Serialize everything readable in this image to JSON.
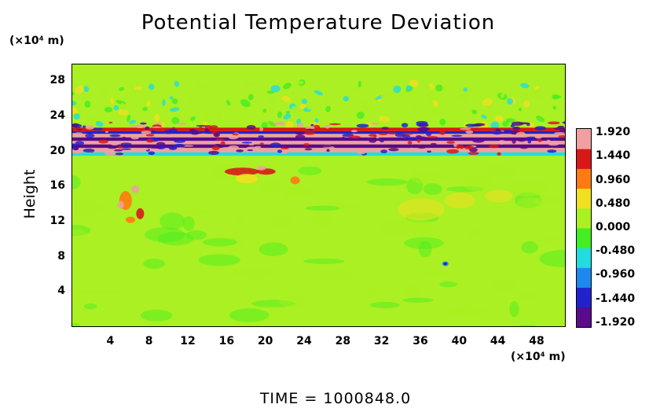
{
  "chart_data": {
    "type": "heatmap",
    "title": "Potential Temperature Deviation",
    "xlabel": "",
    "x_unit": "(×10⁴ m)",
    "ylabel": "Height",
    "y_unit": "(×10⁴ m)",
    "footer": "TIME  =  1000848.0",
    "xlim": [
      0,
      51
    ],
    "ylim": [
      0,
      30
    ],
    "x_ticks": [
      4,
      8,
      12,
      16,
      20,
      24,
      28,
      32,
      36,
      40,
      44,
      48
    ],
    "y_ticks": [
      4,
      8,
      12,
      16,
      20,
      24,
      28
    ],
    "colorbar": {
      "range": [
        -2.0,
        2.0
      ],
      "labels": [
        "1.920",
        "1.440",
        "0.960",
        "0.480",
        "0.000",
        "-0.480",
        "-0.960",
        "-1.440",
        "-1.920"
      ],
      "label_values": [
        1.92,
        1.44,
        0.96,
        0.48,
        0.0,
        -0.48,
        -0.96,
        -1.44,
        -1.92
      ],
      "colors": [
        "#5a0a8a",
        "#2222cc",
        "#1e88ee",
        "#22dddd",
        "#44ee22",
        "#aaf022",
        "#f0e020",
        "#ff7a10",
        "#d81818",
        "#f0a0a0"
      ]
    },
    "features": [
      {
        "name": "stratified band",
        "x": [
          0,
          51
        ],
        "y": [
          19.5,
          23
        ],
        "value": "alternating -1.9 to 1.9"
      },
      {
        "name": "warm anomaly",
        "x": [
          16,
          24
        ],
        "y": [
          17,
          18.5
        ],
        "value": 1.5
      },
      {
        "name": "warm anomaly",
        "x": [
          4,
          8
        ],
        "y": [
          12,
          16.5
        ],
        "value": 1.6
      },
      {
        "name": "wave ripples",
        "x": [
          0,
          51
        ],
        "y": [
          23,
          28
        ],
        "value": "±0.5"
      },
      {
        "name": "cold spot",
        "x": [
          38.5,
          38.5
        ],
        "y": [
          7,
          7
        ],
        "value": -1.0
      }
    ]
  }
}
